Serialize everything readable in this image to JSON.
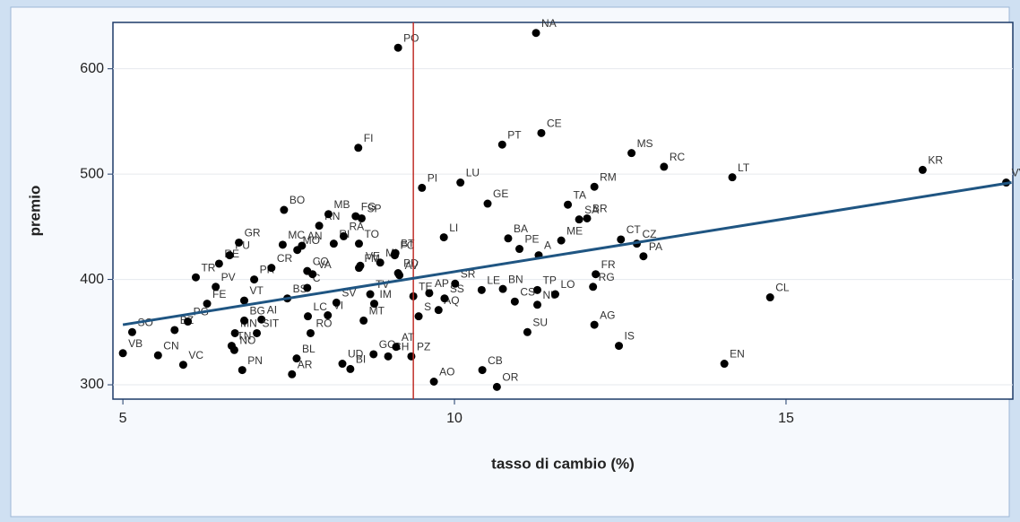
{
  "chart_data": {
    "type": "scatter",
    "x_label": "tasso di cambio (%)",
    "y_label": "premio",
    "xlim": [
      4.85,
      18.42
    ],
    "ylim": [
      286.4,
      644
    ],
    "xticks": [
      5,
      10,
      15
    ],
    "yticks": [
      300,
      400,
      500,
      600
    ],
    "grid": true,
    "point_color": "#000000",
    "trend": {
      "x": [
        5,
        18.4
      ],
      "y": [
        357,
        492
      ],
      "color": "#1f5582"
    },
    "vline": {
      "x": 9.38,
      "color": "#c0302a"
    },
    "points": [
      {
        "label": "VB",
        "x": 5.0,
        "y": 330
      },
      {
        "label": "SO",
        "x": 5.14,
        "y": 350
      },
      {
        "label": "CN",
        "x": 5.53,
        "y": 328
      },
      {
        "label": "BZ",
        "x": 5.78,
        "y": 352
      },
      {
        "label": "VC",
        "x": 5.91,
        "y": 319
      },
      {
        "label": "PG",
        "x": 5.98,
        "y": 360
      },
      {
        "label": "FE",
        "x": 6.27,
        "y": 377
      },
      {
        "label": "PV",
        "x": 6.4,
        "y": 393
      },
      {
        "label": "TR",
        "x": 6.1,
        "y": 402
      },
      {
        "label": "RE",
        "x": 6.45,
        "y": 415
      },
      {
        "label": "PU",
        "x": 6.61,
        "y": 423
      },
      {
        "label": "GR",
        "x": 6.75,
        "y": 435
      },
      {
        "label": "MN",
        "x": 6.69,
        "y": 349
      },
      {
        "label": "NO",
        "x": 6.68,
        "y": 333
      },
      {
        "label": "TN",
        "x": 6.64,
        "y": 337
      },
      {
        "label": "PN",
        "x": 6.8,
        "y": 314
      },
      {
        "label": "BG",
        "x": 6.83,
        "y": 361
      },
      {
        "label": "VT",
        "x": 6.83,
        "y": 380
      },
      {
        "label": "PR",
        "x": 6.98,
        "y": 400
      },
      {
        "label": "AI",
        "x": 7.09,
        "y": 362
      },
      {
        "label": "SIT",
        "x": 7.02,
        "y": 349
      },
      {
        "label": "CR",
        "x": 7.24,
        "y": 411
      },
      {
        "label": "MC",
        "x": 7.41,
        "y": 433
      },
      {
        "label": "BO",
        "x": 7.43,
        "y": 466
      },
      {
        "label": "BS",
        "x": 7.48,
        "y": 382
      },
      {
        "label": "BL",
        "x": 7.62,
        "y": 325
      },
      {
        "label": "AR",
        "x": 7.55,
        "y": 310
      },
      {
        "label": "MO",
        "x": 7.63,
        "y": 428
      },
      {
        "label": "AN",
        "x": 7.7,
        "y": 432
      },
      {
        "label": "CO",
        "x": 7.78,
        "y": 408
      },
      {
        "label": "C",
        "x": 7.78,
        "y": 392
      },
      {
        "label": "LC",
        "x": 7.79,
        "y": 365
      },
      {
        "label": "RO",
        "x": 7.83,
        "y": 349
      },
      {
        "label": "VA",
        "x": 7.86,
        "y": 405
      },
      {
        "label": "RN",
        "x": 7.96,
        "y": 451
      },
      {
        "label": "VI",
        "x": 8.09,
        "y": 366
      },
      {
        "label": "MB",
        "x": 8.1,
        "y": 462
      },
      {
        "label": "RI",
        "x": 8.18,
        "y": 434
      },
      {
        "label": "SV",
        "x": 8.22,
        "y": 378
      },
      {
        "label": "UD",
        "x": 8.31,
        "y": 320
      },
      {
        "label": "RA",
        "x": 8.33,
        "y": 441
      },
      {
        "label": "BI",
        "x": 8.43,
        "y": 315
      },
      {
        "label": "FG",
        "x": 8.51,
        "y": 460
      },
      {
        "label": "FI",
        "x": 8.55,
        "y": 525
      },
      {
        "label": "TO",
        "x": 8.56,
        "y": 434
      },
      {
        "label": "FM",
        "x": 8.56,
        "y": 411
      },
      {
        "label": "VE",
        "x": 8.58,
        "y": 413
      },
      {
        "label": "SP",
        "x": 8.6,
        "y": 458
      },
      {
        "label": "MT",
        "x": 8.63,
        "y": 361
      },
      {
        "label": "TV",
        "x": 8.73,
        "y": 386
      },
      {
        "label": "GO",
        "x": 8.78,
        "y": 329
      },
      {
        "label": "IM",
        "x": 8.79,
        "y": 377
      },
      {
        "label": "MI",
        "x": 8.88,
        "y": 416
      },
      {
        "label": "CH",
        "x": 9.0,
        "y": 327
      },
      {
        "label": "FC",
        "x": 9.1,
        "y": 423
      },
      {
        "label": "BT",
        "x": 9.11,
        "y": 425
      },
      {
        "label": "AT",
        "x": 9.12,
        "y": 336
      },
      {
        "label": "PO",
        "x": 9.15,
        "y": 620
      },
      {
        "label": "PD",
        "x": 9.15,
        "y": 406
      },
      {
        "label": "AV",
        "x": 9.17,
        "y": 404
      },
      {
        "label": "PZ",
        "x": 9.35,
        "y": 327
      },
      {
        "label": "TE",
        "x": 9.38,
        "y": 384
      },
      {
        "label": "S",
        "x": 9.46,
        "y": 365
      },
      {
        "label": "PI",
        "x": 9.51,
        "y": 487
      },
      {
        "label": "AP",
        "x": 9.62,
        "y": 387
      },
      {
        "label": "AO",
        "x": 9.69,
        "y": 303
      },
      {
        "label": "AQ",
        "x": 9.76,
        "y": 371
      },
      {
        "label": "LI",
        "x": 9.84,
        "y": 440
      },
      {
        "label": "SS",
        "x": 9.85,
        "y": 382
      },
      {
        "label": "SR",
        "x": 10.01,
        "y": 396
      },
      {
        "label": "LU",
        "x": 10.09,
        "y": 492
      },
      {
        "label": "LE",
        "x": 10.41,
        "y": 390
      },
      {
        "label": "CB",
        "x": 10.42,
        "y": 314
      },
      {
        "label": "GE",
        "x": 10.5,
        "y": 472
      },
      {
        "label": "OR",
        "x": 10.64,
        "y": 298
      },
      {
        "label": "PT",
        "x": 10.72,
        "y": 528
      },
      {
        "label": "BN",
        "x": 10.73,
        "y": 391
      },
      {
        "label": "PE",
        "x": 10.98,
        "y": 429
      },
      {
        "label": "BA",
        "x": 10.81,
        "y": 439
      },
      {
        "label": "CS",
        "x": 10.91,
        "y": 379
      },
      {
        "label": "SU",
        "x": 11.1,
        "y": 350
      },
      {
        "label": "NA",
        "x": 11.23,
        "y": 634
      },
      {
        "label": "TP",
        "x": 11.25,
        "y": 390
      },
      {
        "label": "NU",
        "x": 11.25,
        "y": 376
      },
      {
        "label": "A",
        "x": 11.27,
        "y": 423
      },
      {
        "label": "CE",
        "x": 11.31,
        "y": 539
      },
      {
        "label": "LO",
        "x": 11.52,
        "y": 386
      },
      {
        "label": "ME",
        "x": 11.61,
        "y": 437
      },
      {
        "label": "TA",
        "x": 11.71,
        "y": 471
      },
      {
        "label": "SA",
        "x": 11.88,
        "y": 457
      },
      {
        "label": "BR",
        "x": 12.0,
        "y": 458
      },
      {
        "label": "RG",
        "x": 12.09,
        "y": 393
      },
      {
        "label": "RM",
        "x": 12.11,
        "y": 488
      },
      {
        "label": "AG",
        "x": 12.11,
        "y": 357
      },
      {
        "label": "FR",
        "x": 12.13,
        "y": 405
      },
      {
        "label": "IS",
        "x": 12.48,
        "y": 337
      },
      {
        "label": "CT",
        "x": 12.51,
        "y": 438
      },
      {
        "label": "MS",
        "x": 12.67,
        "y": 520
      },
      {
        "label": "CZ",
        "x": 12.75,
        "y": 434
      },
      {
        "label": "PA",
        "x": 12.85,
        "y": 422
      },
      {
        "label": "RC",
        "x": 13.16,
        "y": 507
      },
      {
        "label": "EN",
        "x": 14.07,
        "y": 320
      },
      {
        "label": "LT",
        "x": 14.19,
        "y": 497
      },
      {
        "label": "CL",
        "x": 14.76,
        "y": 383
      },
      {
        "label": "KR",
        "x": 17.06,
        "y": 504
      },
      {
        "label": "VV",
        "x": 18.32,
        "y": 492
      }
    ]
  }
}
